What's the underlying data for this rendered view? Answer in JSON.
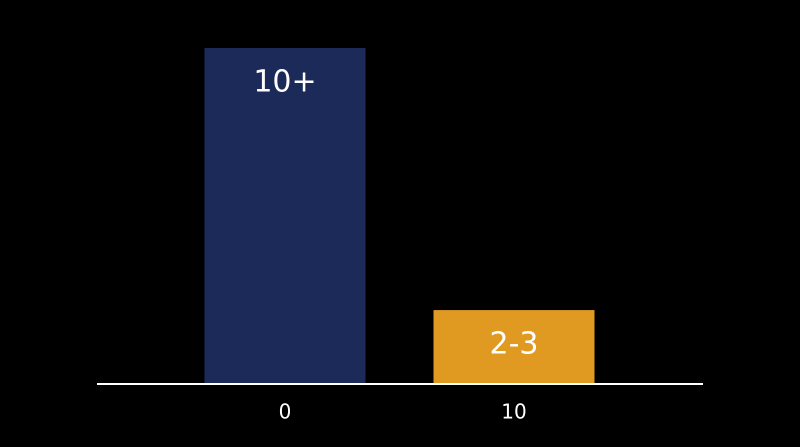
{
  "chart_data": {
    "type": "bar",
    "categories": [
      "0",
      "10"
    ],
    "values": [
      10,
      2.2
    ],
    "value_labels": [
      "10+",
      "2-3"
    ],
    "colors": [
      "#1c2a5a",
      "#e09a22"
    ],
    "ylim": [
      0,
      10
    ]
  }
}
